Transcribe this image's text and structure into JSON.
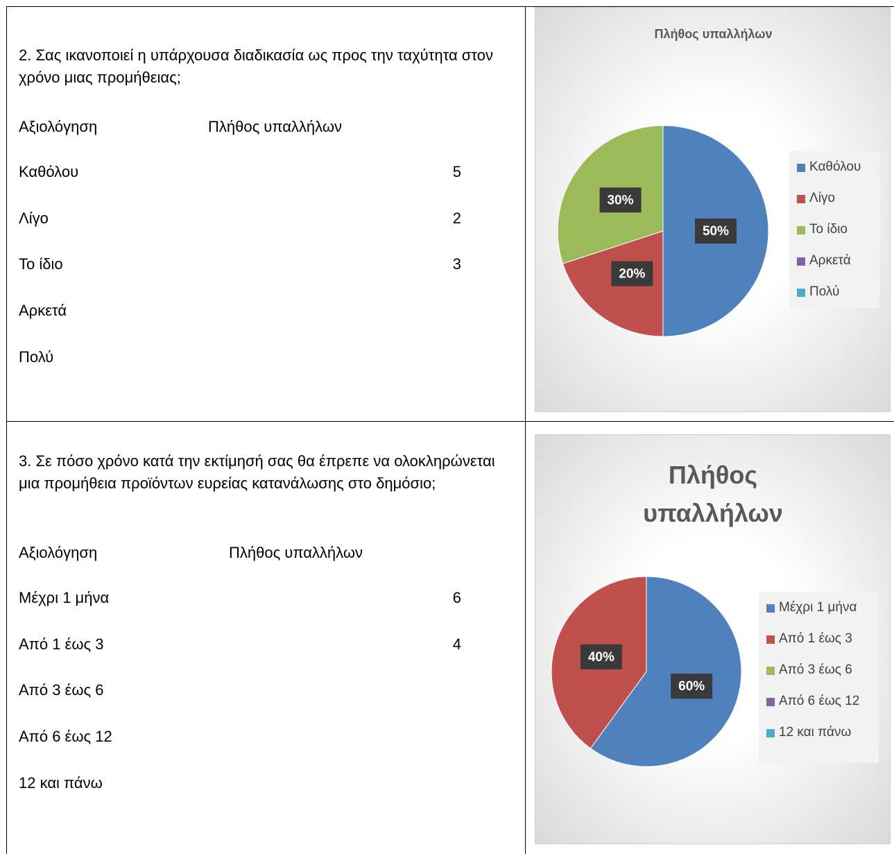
{
  "rows": [
    {
      "question": "2. Σας ικανοποιεί η υπάρχουσα διαδικασία ως προς την ταχύτητα στον χρόνο μιας προμήθειας;",
      "header": [
        "Αξιολόγηση",
        "Πλήθος υπαλλήλων"
      ],
      "items": [
        {
          "label": "Καθόλου",
          "count": 5
        },
        {
          "label": "Λίγο",
          "count": 2
        },
        {
          "label": "Το ίδιο",
          "count": 3
        },
        {
          "label": "Αρκετά"
        },
        {
          "label": "Πολύ"
        }
      ],
      "chart_data": {
        "type": "pie",
        "title": "Πλήθος υπαλλήλων",
        "categories": [
          "Καθόλου",
          "Λίγο",
          "Το ίδιο",
          "Αρκετά",
          "Πολύ"
        ],
        "values": [
          50,
          20,
          30,
          0,
          0
        ],
        "value_labels": [
          "50%",
          "20%",
          "30%",
          null,
          null
        ],
        "colors": [
          "#4f81bd",
          "#c0504d",
          "#9bbb59",
          "#8064a2",
          "#4bacc6"
        ],
        "legend": "right"
      }
    },
    {
      "question": "3. Σε πόσο χρόνο κατά την εκτίμησή σας θα έπρεπε να ολοκληρώνεται μια προμήθεια προϊόντων ευρείας κατανάλωσης στο δημόσιο;",
      "header": [
        "Αξιολόγηση",
        "Πλήθος υπαλλήλων"
      ],
      "items": [
        {
          "label": "Μέχρι 1 μήνα",
          "count": 6
        },
        {
          "label": "Από 1 έως 3",
          "count": 4
        },
        {
          "label": "Από 3 έως 6"
        },
        {
          "label": "Από 6 έως 12"
        },
        {
          "label": "12 και πάνω"
        }
      ],
      "chart_data": {
        "type": "pie",
        "title": "Πλήθος υπαλλήλων",
        "categories": [
          "Μέχρι 1 μήνα",
          "Από 1 έως 3",
          "Από 3 έως 6",
          "Από 6 έως 12",
          "12 και πάνω"
        ],
        "values": [
          60,
          40,
          0,
          0,
          0
        ],
        "value_labels": [
          "60%",
          "40%",
          null,
          null,
          null
        ],
        "colors": [
          "#4f81bd",
          "#c0504d",
          "#9bbb59",
          "#8064a2",
          "#4bacc6"
        ],
        "legend": "right"
      }
    }
  ]
}
